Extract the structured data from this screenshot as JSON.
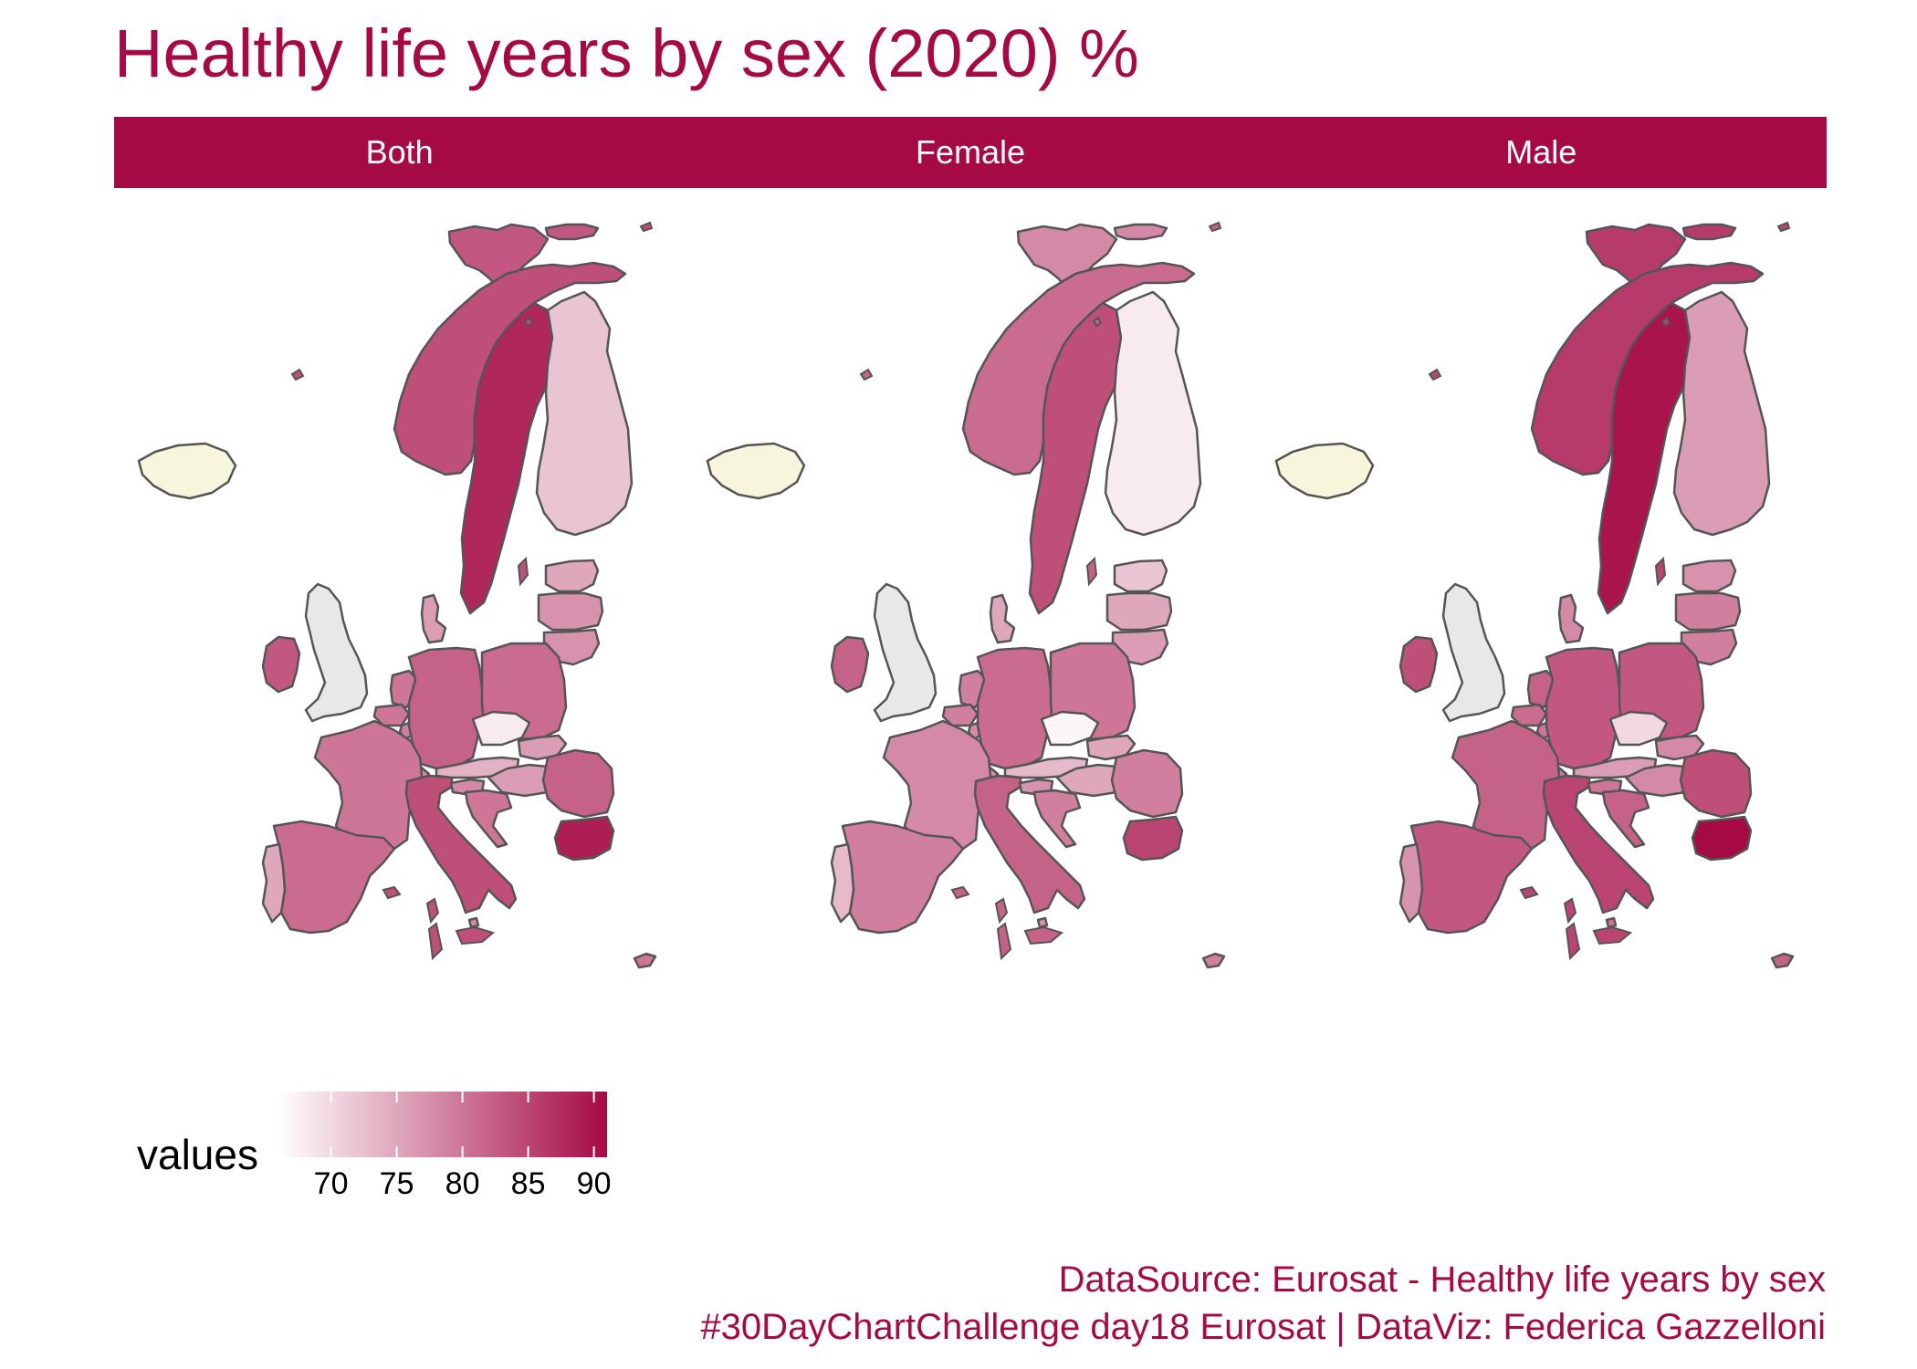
{
  "title": "Healthy life years by sex (2020) %",
  "facets": [
    {
      "label": "Both",
      "values": {
        "NO": 84,
        "SE": 88,
        "FI": 72,
        "EE": 75,
        "LV": 77,
        "LT": 77,
        "IS": null,
        "IE": 83,
        "UK": null,
        "DK": 76,
        "NL": 80,
        "BE": 80,
        "LU": 79,
        "DE": 82,
        "PL": 81,
        "CZ": 68,
        "SK": 76,
        "AT": 74,
        "HU": 76,
        "CH": 78,
        "FR": 80,
        "IT": 84,
        "SI": 78,
        "HR": 80,
        "RO": 82,
        "BG": 89,
        "ES": 81,
        "PT": 75,
        "SJ": 83,
        "MT": 78,
        "CY": 80
      }
    },
    {
      "label": "Female",
      "values": {
        "NO": 81,
        "SE": 84,
        "FI": 68,
        "EE": 72,
        "LV": 75,
        "LT": 76,
        "IS": null,
        "IE": 82,
        "UK": null,
        "DK": 75,
        "NL": 79,
        "BE": 79,
        "LU": 78,
        "DE": 81,
        "PL": 80,
        "CZ": 67,
        "SK": 75,
        "AT": 73,
        "HU": 75,
        "CH": 77,
        "FR": 78,
        "IT": 82,
        "SI": 77,
        "HR": 79,
        "RO": 79,
        "BG": 85,
        "ES": 79,
        "PT": 73,
        "SJ": 78,
        "MT": 77,
        "CY": 79
      }
    },
    {
      "label": "Male",
      "values": {
        "NO": 86,
        "SE": 90,
        "FI": 76,
        "EE": 77,
        "LV": 79,
        "LT": 79,
        "IS": null,
        "IE": 84,
        "UK": null,
        "DK": 78,
        "NL": 82,
        "BE": 81,
        "LU": 80,
        "DE": 83,
        "PL": 83,
        "CZ": 70,
        "SK": 78,
        "AT": 76,
        "HU": 78,
        "CH": 80,
        "FR": 82,
        "IT": 85,
        "SI": 80,
        "HR": 82,
        "RO": 84,
        "BG": 91,
        "ES": 83,
        "PT": 77,
        "SJ": 86,
        "MT": 80,
        "CY": 82
      }
    }
  ],
  "legend": {
    "title": "values",
    "ticks": [
      "70",
      "75",
      "80",
      "85",
      "90"
    ],
    "min": 66,
    "max": 91,
    "low_color": "#ffffff",
    "high_color": "#a50a45"
  },
  "colors": {
    "accent": "#a50a45",
    "na": "#e8e8e8",
    "iceland": "#f7f6dc",
    "border": "#555555"
  },
  "caption": {
    "line1": "DataSource: Eurosat - Healthy life years by sex",
    "line2": "#30DayChartChallenge day18 Eurosat | DataViz: Federica Gazzelloni"
  }
}
